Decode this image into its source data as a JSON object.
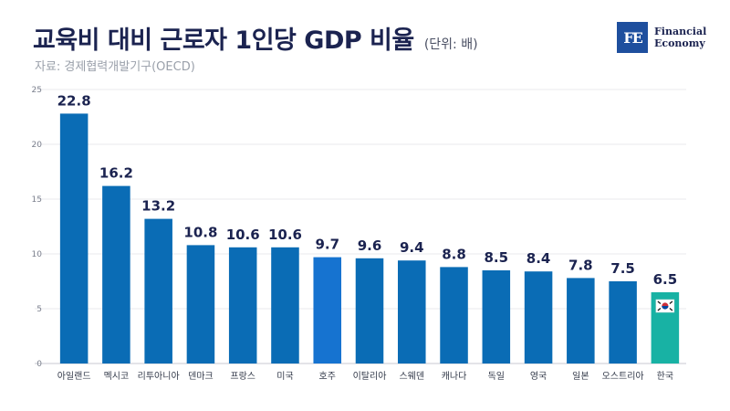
{
  "header": {
    "title": "교육비 대비 근로자 1인당 GDP 비율",
    "unit": "(단위: 배)",
    "source": "자료: 경제협력개발기구(OECD)"
  },
  "logo": {
    "mark": "FE",
    "line1": "Financial",
    "line2": "Economy"
  },
  "colors": {
    "bar": "#0a6cb5",
    "highlight": "#1673d0",
    "korea": "#18b2a4",
    "value": "#1b2350",
    "grid": "#e8e8ee",
    "axis": "#7a7f8c"
  },
  "chart_data": {
    "type": "bar",
    "categories": [
      "아일랜드",
      "멕시코",
      "리투아니아",
      "덴마크",
      "프랑스",
      "미국",
      "호주",
      "이탈리아",
      "스웨덴",
      "캐나다",
      "독일",
      "영국",
      "일본",
      "오스트리아",
      "한국"
    ],
    "values": [
      22.8,
      16.2,
      13.2,
      10.8,
      10.6,
      10.6,
      9.7,
      9.6,
      9.4,
      8.8,
      8.5,
      8.4,
      7.8,
      7.5,
      6.5
    ],
    "value_labels": [
      "22.8",
      "16.2",
      "13.2",
      "10.8",
      "10.6",
      "10.6",
      "9.7",
      "9.6",
      "9.4",
      "8.8",
      "8.5",
      "8.4",
      "7.8",
      "7.5",
      "6.5"
    ],
    "ylim": [
      0,
      25
    ],
    "yticks": [
      "0",
      "5",
      "10",
      "15",
      "20",
      "25"
    ],
    "grid": true,
    "highlight_categories": [
      "호주"
    ],
    "korea_category": "한국",
    "korea_flag_icon": "korea-flag-icon"
  }
}
